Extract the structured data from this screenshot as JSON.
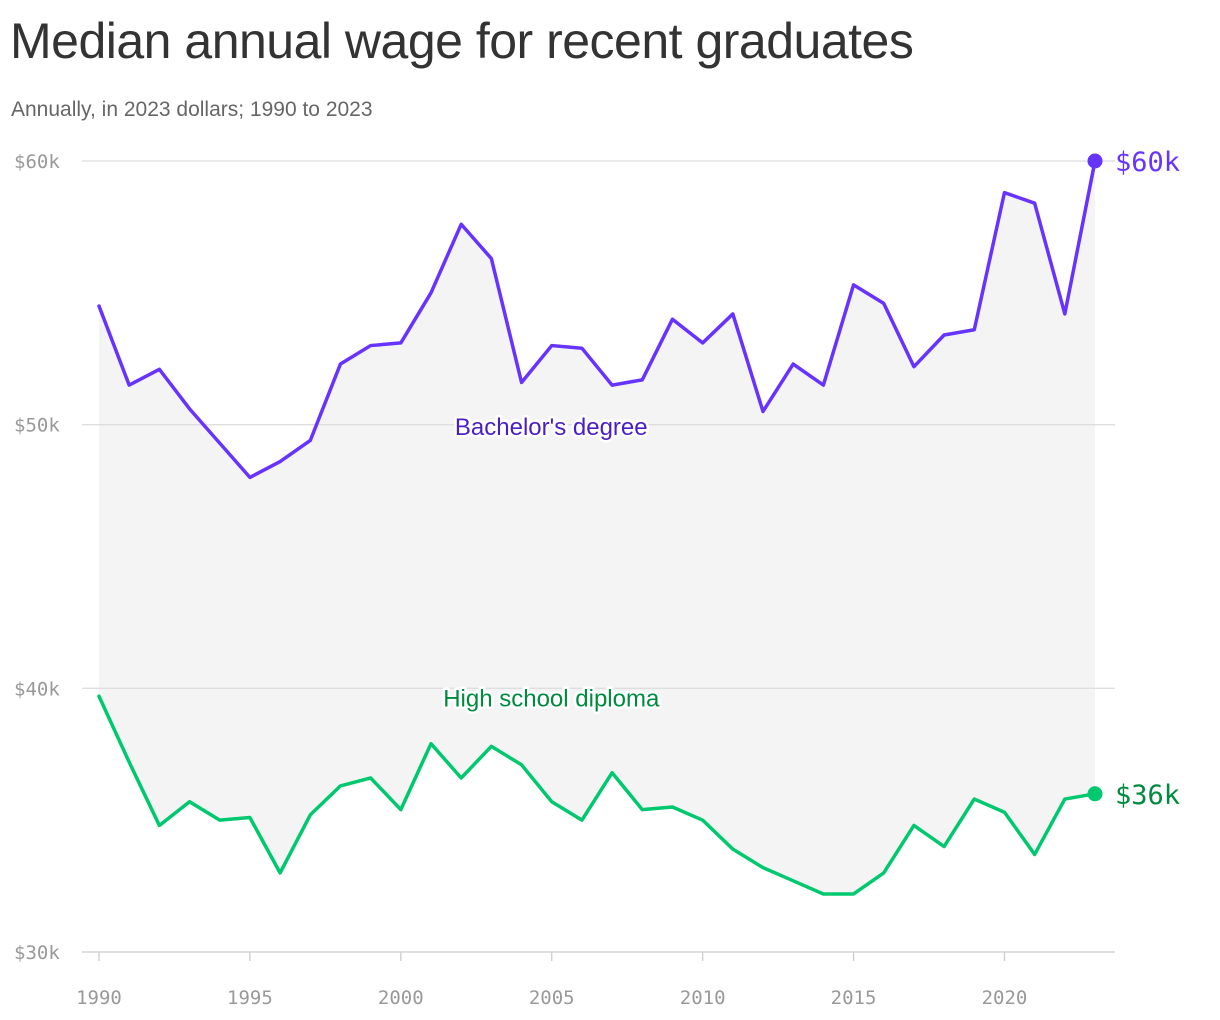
{
  "title": "Median annual wage for recent graduates",
  "subtitle": "Annually, in 2023 dollars; 1990 to 2023",
  "chart_data": {
    "type": "line",
    "x": [
      1990,
      1991,
      1992,
      1993,
      1994,
      1995,
      1996,
      1997,
      1998,
      1999,
      2000,
      2001,
      2002,
      2003,
      2004,
      2005,
      2006,
      2007,
      2008,
      2009,
      2010,
      2011,
      2012,
      2013,
      2014,
      2015,
      2016,
      2017,
      2018,
      2019,
      2020,
      2021,
      2022,
      2023
    ],
    "xticks": [
      {
        "value": 1990,
        "label": "1990"
      },
      {
        "value": 1995,
        "label": "1995"
      },
      {
        "value": 2000,
        "label": "2000"
      },
      {
        "value": 2005,
        "label": "2005"
      },
      {
        "value": 2010,
        "label": "2010"
      },
      {
        "value": 2015,
        "label": "2015"
      },
      {
        "value": 2020,
        "label": "2020"
      }
    ],
    "yticks": [
      {
        "value": 60000,
        "label": "$60k"
      },
      {
        "value": 50000,
        "label": "$50k"
      },
      {
        "value": 40000,
        "label": "$40k"
      },
      {
        "value": 30000,
        "label": "$30k"
      }
    ],
    "xlim": [
      1990,
      2023
    ],
    "ylim": [
      30000,
      60000
    ],
    "grid": "horizontal",
    "shaded_between_series": true,
    "series": [
      {
        "name": "Bachelor's degree",
        "color": "#6633ff",
        "label_color": "#4a1fc2",
        "end_label": "$60k",
        "values": [
          54500,
          51500,
          52100,
          50600,
          49300,
          48000,
          48600,
          49400,
          52300,
          53000,
          53100,
          55000,
          57600,
          56300,
          51600,
          53000,
          52900,
          51500,
          51700,
          54000,
          53100,
          54200,
          50500,
          52300,
          51500,
          55300,
          54600,
          52200,
          53400,
          53600,
          58800,
          58400,
          54200,
          60000
        ]
      },
      {
        "name": "High school diploma",
        "color": "#00c86e",
        "label_color": "#008a3f",
        "end_label": "$36k",
        "values": [
          39700,
          37200,
          34800,
          35700,
          35000,
          35100,
          33000,
          35200,
          36300,
          36600,
          35400,
          37900,
          36600,
          37800,
          37100,
          35700,
          35000,
          36800,
          35400,
          35500,
          35000,
          33900,
          33200,
          32700,
          32200,
          32200,
          33000,
          34800,
          34000,
          35800,
          35300,
          33700,
          35800,
          36000
        ]
      }
    ]
  }
}
